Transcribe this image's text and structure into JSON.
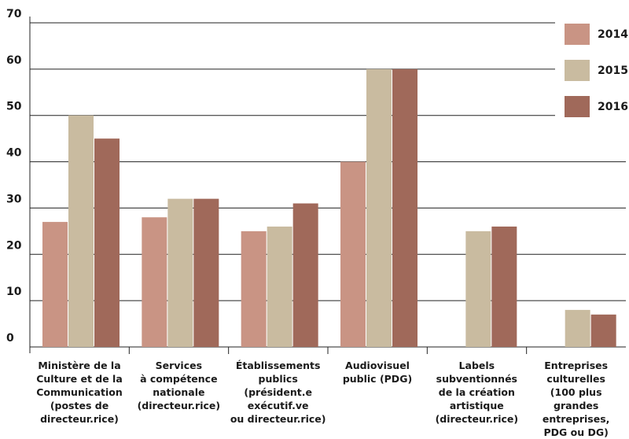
{
  "chart_data": {
    "type": "bar",
    "categories": [
      "Ministère de la\nCulture et de la\nCommunication\n(postes de\ndirecteur.rice)",
      "Services\nà compétence\nnationale\n(directeur.rice)",
      "Établissements\npublics\n(président.e\nexécutif.ve\nou directeur.rice)",
      "Audiovisuel\npublic (PDG)",
      "Labels\nsubventionnés\nde la création\nartistique\n(directeur.rice)",
      "Entreprises\nculturelles\n(100 plus grandes\nentreprises,\nPDG ou DG)"
    ],
    "series": [
      {
        "name": "2014",
        "color": "#c99484",
        "values": [
          27,
          28,
          25,
          40,
          null,
          null
        ]
      },
      {
        "name": "2015",
        "color": "#c9bba0",
        "values": [
          50,
          32,
          26,
          60,
          25,
          8
        ]
      },
      {
        "name": "2016",
        "color": "#a0695a",
        "values": [
          45,
          32,
          31,
          60,
          26,
          7
        ]
      }
    ],
    "ylim": [
      0,
      70
    ],
    "yticks": [
      0,
      10,
      20,
      30,
      40,
      50,
      60,
      70
    ],
    "grid": true,
    "legend": "top-right"
  }
}
